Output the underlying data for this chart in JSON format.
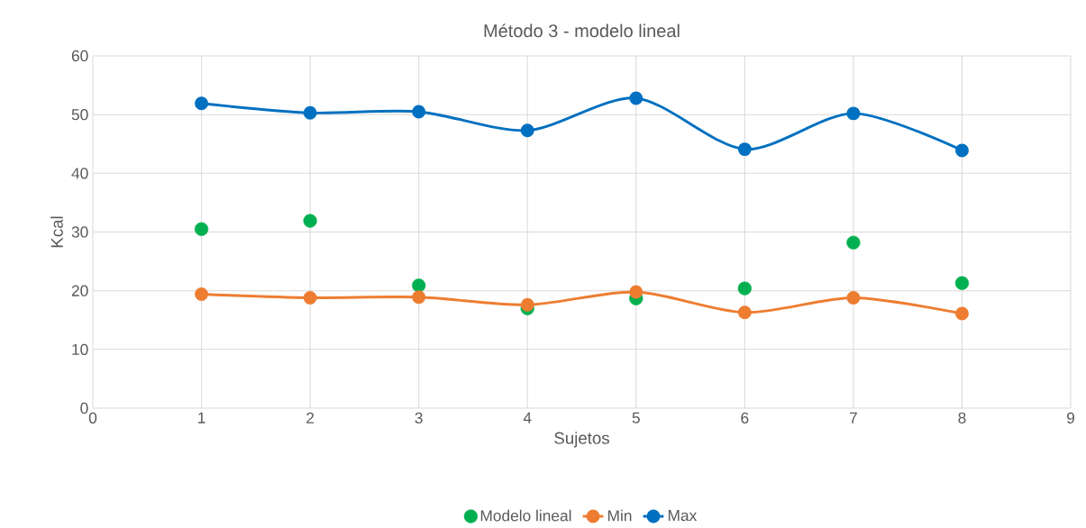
{
  "chart_data": {
    "type": "line",
    "title": "Método 3 - modelo lineal",
    "xlabel": "Sujetos",
    "ylabel": "Kcal",
    "x": [
      1,
      2,
      3,
      4,
      5,
      6,
      7,
      8
    ],
    "series": [
      {
        "name": "Modelo lineal",
        "type": "scatter",
        "color": "#00b050",
        "marker": "circle",
        "values": [
          30.5,
          31.9,
          20.9,
          17.0,
          18.7,
          20.4,
          28.2,
          21.3
        ]
      },
      {
        "name": "Min",
        "color": "#ed7d31",
        "marker": "circle",
        "values": [
          19.4,
          18.8,
          18.9,
          17.6,
          19.8,
          16.3,
          18.8,
          16.1
        ]
      },
      {
        "name": "Max",
        "color": "#0070c0",
        "marker": "circle",
        "values": [
          51.9,
          50.3,
          50.5,
          47.3,
          52.8,
          44.1,
          50.2,
          43.9
        ]
      }
    ],
    "xlim": [
      0,
      9
    ],
    "xticks": [
      0,
      1,
      2,
      3,
      4,
      5,
      6,
      7,
      8,
      9
    ],
    "ylim": [
      0,
      60
    ],
    "yticks": [
      0,
      10,
      20,
      30,
      40,
      50,
      60
    ],
    "grid": true,
    "legend": "bottom"
  }
}
